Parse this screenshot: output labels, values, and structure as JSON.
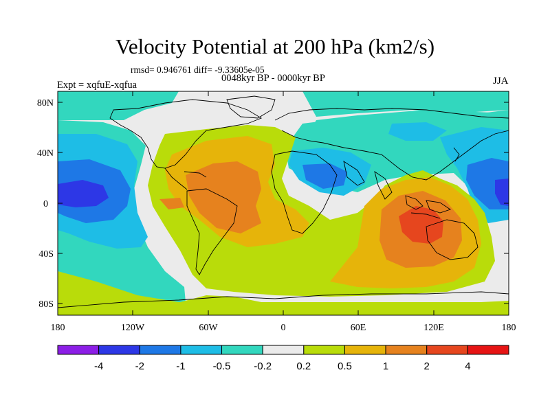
{
  "title": "Velocity Potential at 200 hPa (km2/s)",
  "stats_line": "rmsd= 0.946761 diff= -9.33605e-05",
  "period_line": "0048kyr BP - 0000kyr BP",
  "experiment": "Expt = xqfuE-xqfua",
  "season": "JJA",
  "lat_labels": [
    "80N",
    "40N",
    "0",
    "40S",
    "80S"
  ],
  "lon_labels": [
    "180",
    "120W",
    "60W",
    "0",
    "60E",
    "120E",
    "180"
  ],
  "colorbar": {
    "colors": [
      "#8c1ee6",
      "#2d37e6",
      "#1e78e6",
      "#1ebde6",
      "#32d7be",
      "#ebebeb",
      "#b9dc0a",
      "#e6b40a",
      "#e6821e",
      "#e6461e",
      "#e61414"
    ],
    "labels": [
      "-4",
      "-2",
      "-1",
      "-0.5",
      "-0.2",
      "0.2",
      "0.5",
      "1",
      "2",
      "4"
    ]
  }
}
